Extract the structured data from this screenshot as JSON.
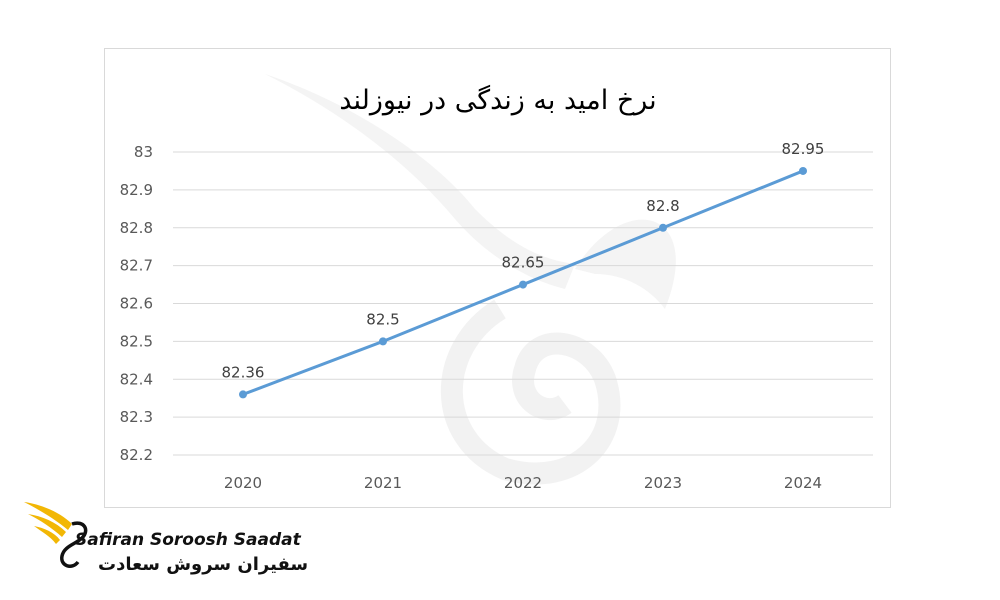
{
  "chart_data": {
    "type": "line",
    "title": "نرخ امید به زندگی در نیوزلند",
    "categories": [
      "2020",
      "2021",
      "2022",
      "2023",
      "2024"
    ],
    "series": [
      {
        "values": [
          82.36,
          82.5,
          82.65,
          82.8,
          82.95
        ],
        "data_labels": [
          "82.36",
          "82.5",
          "82.65",
          "82.8",
          "82.95"
        ]
      }
    ],
    "yticks": [
      "82.2",
      "82.3",
      "82.4",
      "82.5",
      "82.6",
      "82.7",
      "82.8",
      "82.9",
      "83"
    ],
    "ylim": [
      82.2,
      83
    ],
    "xlabel": "",
    "ylabel": "",
    "grid": true,
    "legend": "none",
    "colors": {
      "line": "#5b9bd5",
      "grid": "#d9d9d9",
      "logo_wing": "#f2b705"
    }
  },
  "brand": {
    "name_en": "Safiran Soroosh Saadat",
    "name_fa": "سفیران سروش سعادت"
  }
}
